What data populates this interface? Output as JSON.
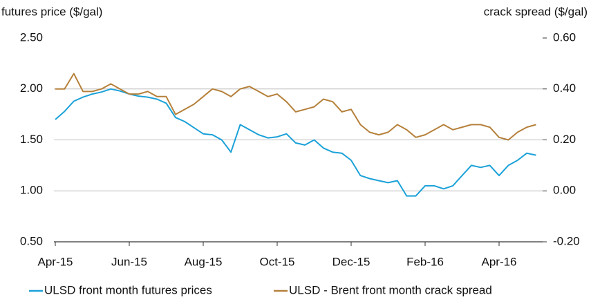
{
  "chart_data": {
    "type": "line",
    "y_axis_label": "futures price ($/gal)",
    "y2_axis_label": "crack spread ($/gal)",
    "categories": [
      "Apr-15",
      null,
      null,
      null,
      null,
      null,
      null,
      null,
      "Jun-15",
      null,
      null,
      null,
      null,
      null,
      null,
      null,
      "Aug-15",
      null,
      null,
      null,
      null,
      null,
      null,
      null,
      "Oct-15",
      null,
      null,
      null,
      null,
      null,
      null,
      null,
      "Dec-15",
      null,
      null,
      null,
      null,
      null,
      null,
      null,
      "Feb-16",
      null,
      null,
      null,
      null,
      null,
      null,
      null,
      "Apr-16",
      null,
      null,
      null,
      null
    ],
    "series": [
      {
        "name": "ULSD front month futures prices",
        "color": "#1ba1d8",
        "axis": "y",
        "values": [
          1.7,
          1.78,
          1.88,
          1.92,
          1.95,
          1.97,
          2.0,
          1.98,
          1.95,
          1.93,
          1.92,
          1.9,
          1.86,
          1.72,
          1.68,
          1.62,
          1.56,
          1.55,
          1.5,
          1.38,
          1.65,
          1.6,
          1.55,
          1.52,
          1.53,
          1.56,
          1.47,
          1.45,
          1.5,
          1.42,
          1.38,
          1.37,
          1.3,
          1.15,
          1.12,
          1.1,
          1.08,
          1.1,
          0.95,
          0.95,
          1.05,
          1.05,
          1.02,
          1.05,
          1.15,
          1.25,
          1.23,
          1.25,
          1.15,
          1.25,
          1.3,
          1.37,
          1.35
        ]
      },
      {
        "name": "ULSD - Brent front month crack spread",
        "color": "#b5803a",
        "axis": "y2",
        "values": [
          0.4,
          0.4,
          0.46,
          0.39,
          0.39,
          0.4,
          0.42,
          0.4,
          0.38,
          0.38,
          0.39,
          0.37,
          0.37,
          0.3,
          0.32,
          0.34,
          0.37,
          0.4,
          0.39,
          0.37,
          0.4,
          0.41,
          0.39,
          0.37,
          0.38,
          0.35,
          0.31,
          0.32,
          0.33,
          0.36,
          0.35,
          0.31,
          0.32,
          0.26,
          0.23,
          0.22,
          0.23,
          0.26,
          0.24,
          0.21,
          0.22,
          0.24,
          0.26,
          0.24,
          0.25,
          0.26,
          0.26,
          0.25,
          0.21,
          0.2,
          0.23,
          0.25,
          0.26
        ]
      }
    ],
    "ylim": [
      0.5,
      2.5
    ],
    "yticks": [
      {
        "value": 0.5,
        "label": "0.50"
      },
      {
        "value": 1.0,
        "label": "1.00"
      },
      {
        "value": 1.5,
        "label": "1.50"
      },
      {
        "value": 2.0,
        "label": "2.00"
      },
      {
        "value": 2.5,
        "label": "2.50"
      }
    ],
    "y2lim": [
      -0.2,
      0.6
    ],
    "y2ticks": [
      {
        "value": -0.2,
        "label": "-0.20"
      },
      {
        "value": 0.0,
        "label": "0.00"
      },
      {
        "value": 0.2,
        "label": "0.20"
      },
      {
        "value": 0.4,
        "label": "0.40"
      },
      {
        "value": 0.6,
        "label": "0.60"
      }
    ],
    "grid": true,
    "legend": "bottom"
  }
}
